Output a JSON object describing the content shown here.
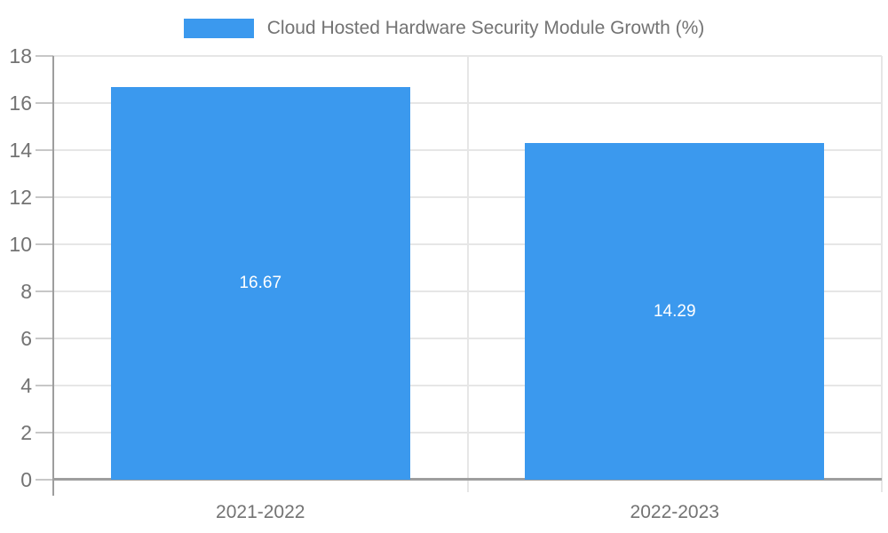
{
  "chart_data": {
    "type": "bar",
    "title": "Cloud Hosted Hardware Security Module Growth (%)",
    "categories": [
      "2021-2022",
      "2022-2023"
    ],
    "values": [
      16.67,
      14.29
    ],
    "value_labels": [
      "16.67",
      "14.29"
    ],
    "yticks": [
      "0",
      "2",
      "4",
      "6",
      "8",
      "10",
      "12",
      "14",
      "16",
      "18"
    ],
    "ylim": [
      0,
      18
    ],
    "xlabel": "",
    "ylabel": "",
    "grid": true,
    "legend_position": "top-center",
    "colors": {
      "bar": "#3B99EE",
      "gridline": "#E6E6E6",
      "axis": "#9E9E9E",
      "tick": "#C7C7C7",
      "text": "#737373",
      "bar_label": "#FFFFFF",
      "background": "#FFFFFF"
    }
  }
}
